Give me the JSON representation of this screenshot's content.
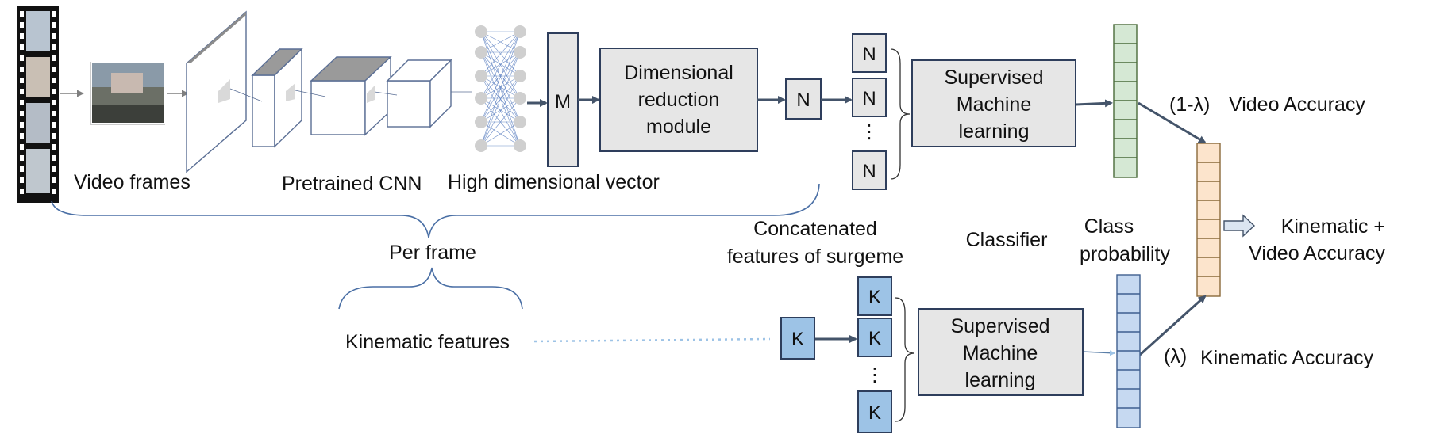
{
  "labels": {
    "video_frames": "Video frames",
    "pretrained_cnn": "Pretrained CNN",
    "high_dim_vector": "High dimensional vector",
    "per_frame": "Per frame",
    "kinematic_features": "Kinematic features",
    "concat_line1": "Concatenated",
    "concat_line2": "features of surgeme",
    "classifier": "Classifier",
    "class_prob_line1": "Class",
    "class_prob_line2": "probability",
    "one_minus_lambda": "(1-λ)",
    "video_accuracy": "Video Accuracy",
    "lambda": "(λ)",
    "kinematic_accuracy": "Kinematic Accuracy",
    "kv_line1": "Kinematic +",
    "kv_line2": "Video Accuracy"
  },
  "boxes": {
    "m": "M",
    "dim_line1": "Dimensional",
    "dim_line2": "reduction",
    "dim_line3": "module",
    "n": "N",
    "k": "K",
    "dots": "⋮",
    "sml_top_line1": "Supervised",
    "sml_top_line2": "Machine",
    "sml_top_line3": "learning",
    "sml_bot_line1": "Supervised",
    "sml_bot_line2": "Machine",
    "sml_bot_line3": "learning"
  },
  "colors": {
    "green_prob": "#d5e8d4",
    "orange_prob": "#fce4cc",
    "blue_prob": "#c6d9f1",
    "k_box": "#9dc3e6",
    "grey_box": "#e6e6e6",
    "arrow": "#44546a"
  }
}
